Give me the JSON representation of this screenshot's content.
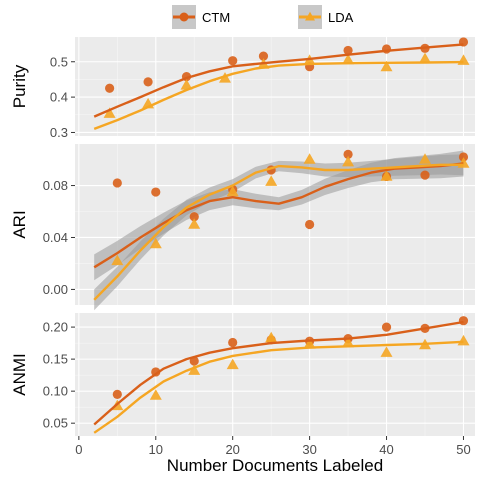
{
  "chart_data": {
    "type": "scatter",
    "xlabel": "Number Documents Labeled",
    "x_ticks": [
      0,
      10,
      20,
      30,
      40,
      50
    ],
    "xlim": [
      -0.5,
      51.5
    ],
    "legend": {
      "placement": "top",
      "entries": [
        "CTM",
        "LDA"
      ]
    },
    "colors": {
      "CTM": "#d9601a",
      "LDA": "#f5a623",
      "ribbon": "#999999"
    },
    "panels": [
      {
        "ylabel": "Purity",
        "ylim": [
          0.29,
          0.57
        ],
        "y_ticks": [
          0.3,
          0.4,
          0.5
        ],
        "y_tick_labels": [
          "0.3",
          "0.4",
          "0.5"
        ],
        "series": [
          {
            "name": "CTM",
            "marker": "circle",
            "x": [
              4,
              9,
              14,
              20,
              24,
              30,
              35,
              40,
              45,
              50
            ],
            "y": [
              0.425,
              0.443,
              0.458,
              0.503,
              0.516,
              0.486,
              0.532,
              0.536,
              0.538,
              0.556
            ],
            "smooth": [
              [
                2,
                0.345
              ],
              [
                5,
                0.373
              ],
              [
                8,
                0.4
              ],
              [
                11,
                0.428
              ],
              [
                14,
                0.454
              ],
              [
                17,
                0.473
              ],
              [
                20,
                0.487
              ],
              [
                23,
                0.494
              ],
              [
                26,
                0.5
              ],
              [
                30,
                0.508
              ],
              [
                35,
                0.52
              ],
              [
                40,
                0.531
              ],
              [
                45,
                0.54
              ],
              [
                50,
                0.549
              ]
            ]
          },
          {
            "name": "LDA",
            "marker": "triangle",
            "x": [
              4,
              9,
              14,
              19,
              24,
              30,
              35,
              40,
              45,
              50
            ],
            "y": [
              0.353,
              0.38,
              0.433,
              0.453,
              0.492,
              0.503,
              0.505,
              0.485,
              0.508,
              0.503
            ],
            "smooth": [
              [
                2,
                0.31
              ],
              [
                5,
                0.335
              ],
              [
                8,
                0.362
              ],
              [
                11,
                0.392
              ],
              [
                14,
                0.42
              ],
              [
                17,
                0.445
              ],
              [
                20,
                0.466
              ],
              [
                23,
                0.481
              ],
              [
                26,
                0.489
              ],
              [
                30,
                0.494
              ],
              [
                35,
                0.496
              ],
              [
                40,
                0.497
              ],
              [
                45,
                0.498
              ],
              [
                50,
                0.499
              ]
            ]
          }
        ]
      },
      {
        "ylabel": "ARI",
        "ylim": [
          -0.012,
          0.112
        ],
        "y_ticks": [
          0.0,
          0.04,
          0.08
        ],
        "y_tick_labels": [
          "0.00",
          "0.04",
          "0.08"
        ],
        "series": [
          {
            "name": "CTM",
            "marker": "circle",
            "x": [
              5,
              10,
              15,
              20,
              25,
              30,
              35,
              40,
              45,
              50
            ],
            "y": [
              0.082,
              0.075,
              0.056,
              0.077,
              0.092,
              0.05,
              0.104,
              0.087,
              0.088,
              0.102
            ],
            "smooth": [
              [
                2,
                0.017
              ],
              [
                5,
                0.028
              ],
              [
                8,
                0.04
              ],
              [
                11,
                0.051
              ],
              [
                14,
                0.061
              ],
              [
                17,
                0.068
              ],
              [
                20,
                0.071
              ],
              [
                23,
                0.068
              ],
              [
                26,
                0.066
              ],
              [
                29,
                0.071
              ],
              [
                32,
                0.079
              ],
              [
                35,
                0.085
              ],
              [
                38,
                0.09
              ],
              [
                41,
                0.093
              ],
              [
                44,
                0.094
              ],
              [
                47,
                0.095
              ],
              [
                50,
                0.097
              ]
            ],
            "band": 0.005
          },
          {
            "name": "LDA",
            "marker": "triangle",
            "x": [
              5,
              10,
              15,
              20,
              25,
              30,
              35,
              40,
              45,
              50
            ],
            "y": [
              0.022,
              0.035,
              0.05,
              0.075,
              0.083,
              0.1,
              0.098,
              0.087,
              0.1,
              0.097
            ],
            "smooth": [
              [
                2,
                -0.008
              ],
              [
                5,
                0.01
              ],
              [
                8,
                0.03
              ],
              [
                11,
                0.048
              ],
              [
                14,
                0.063
              ],
              [
                17,
                0.073
              ],
              [
                20,
                0.08
              ],
              [
                23,
                0.09
              ],
              [
                26,
                0.095
              ],
              [
                29,
                0.094
              ],
              [
                32,
                0.092
              ],
              [
                35,
                0.092
              ],
              [
                38,
                0.093
              ],
              [
                41,
                0.094
              ],
              [
                44,
                0.095
              ],
              [
                47,
                0.096
              ],
              [
                50,
                0.096
              ]
            ],
            "band": 0.004
          }
        ]
      },
      {
        "ylabel": "ANMI",
        "ylim": [
          0.03,
          0.222
        ],
        "y_ticks": [
          0.05,
          0.1,
          0.15,
          0.2
        ],
        "y_tick_labels": [
          "0.05",
          "0.10",
          "0.15",
          "0.20"
        ],
        "series": [
          {
            "name": "CTM",
            "marker": "circle",
            "x": [
              5,
              10,
              15,
              20,
              25,
              30,
              35,
              40,
              45,
              50
            ],
            "y": [
              0.095,
              0.13,
              0.147,
              0.176,
              0.18,
              0.178,
              0.182,
              0.2,
              0.198,
              0.21
            ],
            "smooth": [
              [
                2,
                0.048
              ],
              [
                5,
                0.08
              ],
              [
                8,
                0.11
              ],
              [
                11,
                0.135
              ],
              [
                14,
                0.15
              ],
              [
                17,
                0.16
              ],
              [
                20,
                0.167
              ],
              [
                25,
                0.175
              ],
              [
                30,
                0.179
              ],
              [
                35,
                0.182
              ],
              [
                40,
                0.188
              ],
              [
                45,
                0.198
              ],
              [
                50,
                0.208
              ]
            ]
          },
          {
            "name": "LDA",
            "marker": "triangle",
            "x": [
              5,
              10,
              15,
              20,
              25,
              30,
              35,
              40,
              45,
              50
            ],
            "y": [
              0.077,
              0.093,
              0.132,
              0.141,
              0.183,
              0.173,
              0.175,
              0.16,
              0.172,
              0.178
            ],
            "smooth": [
              [
                2,
                0.035
              ],
              [
                5,
                0.06
              ],
              [
                8,
                0.09
              ],
              [
                11,
                0.115
              ],
              [
                14,
                0.132
              ],
              [
                17,
                0.146
              ],
              [
                20,
                0.155
              ],
              [
                25,
                0.164
              ],
              [
                30,
                0.168
              ],
              [
                35,
                0.17
              ],
              [
                40,
                0.172
              ],
              [
                45,
                0.174
              ],
              [
                50,
                0.177
              ]
            ]
          }
        ]
      }
    ]
  }
}
